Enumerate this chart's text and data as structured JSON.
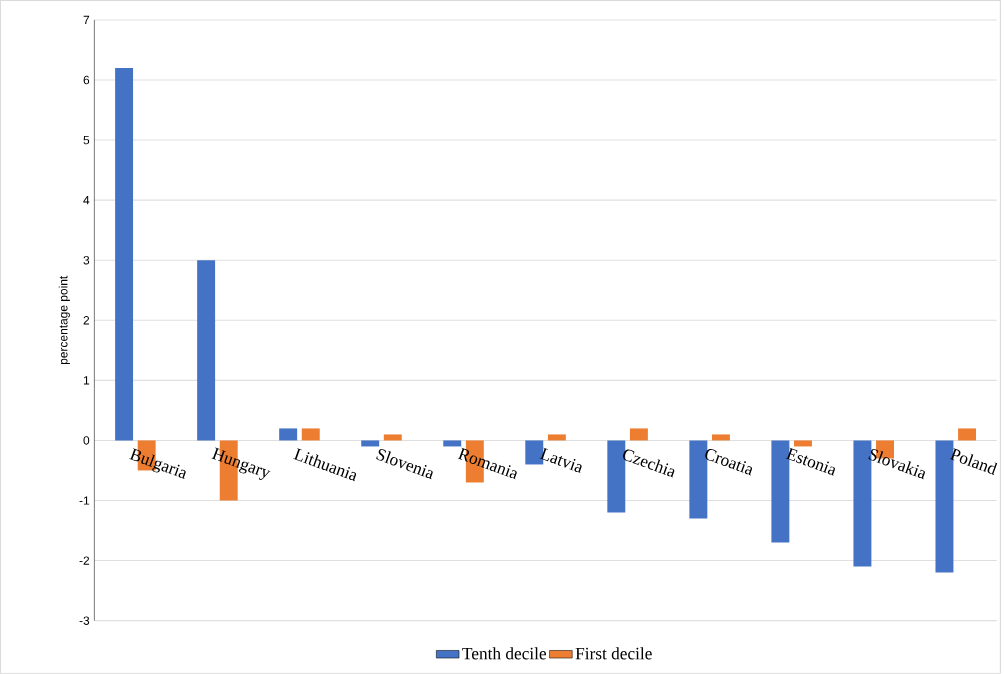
{
  "chart_data": {
    "type": "bar",
    "ylabel": "percentage point",
    "categories": [
      "Bulgaria",
      "Hungary",
      "Lithuania",
      "Slovenia",
      "Romania",
      "Latvia",
      "Czechia",
      "Croatia",
      "Estonia",
      "Slovakia",
      "Poland"
    ],
    "series": [
      {
        "name": "Tenth decile",
        "color": "#4472c4",
        "values": [
          6.2,
          3.0,
          0.2,
          -0.1,
          -0.1,
          -0.4,
          -1.2,
          -1.3,
          -1.7,
          -2.1,
          -2.2
        ]
      },
      {
        "name": "First decile",
        "color": "#ed7d31",
        "values": [
          -0.5,
          -1.0,
          0.2,
          0.1,
          -0.7,
          0.1,
          0.2,
          0.1,
          -0.1,
          -0.3,
          0.2
        ]
      }
    ],
    "ylim": [
      -3,
      7
    ],
    "yticks": [
      -3,
      -2,
      -1,
      0,
      1,
      2,
      3,
      4,
      5,
      6,
      7
    ],
    "grid": "y",
    "legend": "bottom"
  }
}
